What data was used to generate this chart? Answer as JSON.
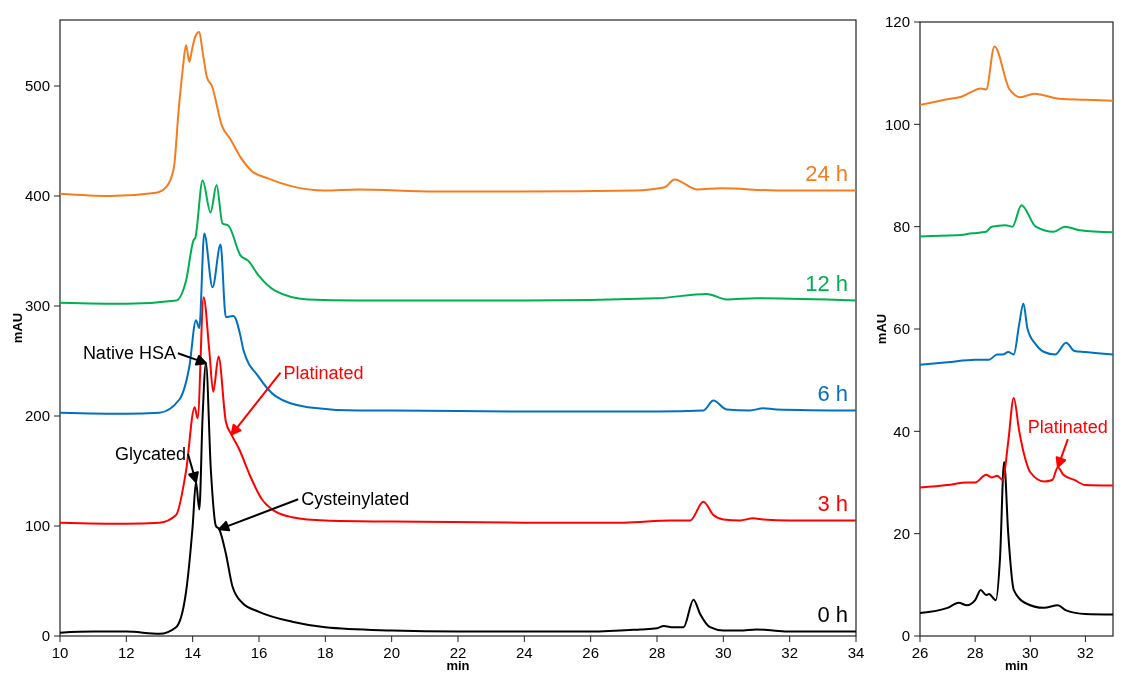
{
  "chart_data": [
    {
      "type": "line",
      "xlabel": "min",
      "ylabel": "mAU",
      "xlim": [
        10,
        34
      ],
      "ylim": [
        0,
        560
      ],
      "xticks": [
        10,
        12,
        14,
        16,
        18,
        20,
        22,
        24,
        26,
        28,
        30,
        32,
        34
      ],
      "yticks": [
        0,
        100,
        200,
        300,
        400,
        500
      ],
      "legend": false,
      "grid": false,
      "series": [
        {
          "name": "0 h",
          "color": "#000000",
          "x": [
            10,
            11,
            12,
            13,
            13.5,
            13.8,
            14.0,
            14.1,
            14.2,
            14.3,
            14.4,
            14.55,
            14.7,
            14.8,
            15.0,
            15.2,
            15.5,
            16,
            17,
            18,
            20,
            22,
            24,
            26,
            27.5,
            28,
            28.2,
            28.5,
            28.8,
            29.1,
            29.3,
            29.6,
            30,
            30.5,
            31,
            31.5,
            32,
            34
          ],
          "values": [
            3,
            4,
            4,
            2,
            8,
            40,
            100,
            140,
            115,
            200,
            248,
            150,
            100,
            97,
            75,
            45,
            30,
            22,
            13,
            8,
            5,
            4,
            4,
            4,
            6,
            7,
            9,
            8,
            8,
            33,
            20,
            8,
            5,
            5,
            6,
            5,
            4,
            4
          ]
        },
        {
          "name": "3 h",
          "color": "#ff0000",
          "x": [
            10,
            12,
            13,
            13.5,
            13.8,
            14.06,
            14.15,
            14.33,
            14.5,
            14.62,
            14.78,
            15.0,
            15.17,
            15.4,
            15.74,
            16.07,
            16.5,
            17,
            18,
            20,
            24,
            27,
            28.4,
            29,
            29.4,
            29.7,
            30,
            30.5,
            30.9,
            31.2,
            32,
            34
          ],
          "values": [
            103,
            102,
            103,
            110,
            150,
            208,
            198,
            308,
            260,
            222,
            254,
            195,
            183,
            170,
            145,
            125,
            113,
            108,
            105,
            104,
            103,
            103,
            105,
            105,
            122,
            110,
            106,
            105,
            107,
            106,
            105,
            105
          ]
        },
        {
          "name": "6 h",
          "color": "#0070c0",
          "x": [
            10,
            12,
            13,
            13.6,
            13.9,
            14.1,
            14.2,
            14.35,
            14.6,
            14.84,
            15.0,
            15.23,
            15.44,
            15.53,
            15.98,
            16.5,
            17.47,
            19,
            20,
            24,
            28,
            29.4,
            29.7,
            30.1,
            30.8,
            31.2,
            31.6,
            34
          ],
          "values": [
            203,
            202,
            203,
            215,
            245,
            287,
            280,
            366,
            317,
            356,
            290,
            291,
            273,
            260,
            236,
            218,
            208,
            205,
            205,
            204,
            204,
            205,
            214,
            206,
            205,
            207,
            206,
            205
          ]
        },
        {
          "name": "12 h",
          "color": "#00b050",
          "x": [
            10,
            12,
            13.5,
            13.8,
            14.03,
            14.08,
            14.3,
            14.54,
            14.72,
            14.9,
            15.08,
            15.44,
            15.68,
            15.98,
            16.48,
            17.47,
            18.97,
            24,
            28,
            29.5,
            30.1,
            31,
            34
          ],
          "values": [
            303,
            302,
            305,
            323,
            360,
            362,
            414,
            385,
            410,
            375,
            373,
            346,
            341,
            328,
            314,
            306,
            305,
            305,
            307,
            311,
            306,
            307,
            305
          ]
        },
        {
          "name": "24 h",
          "color": "#f57c1f",
          "x": [
            10,
            11.5,
            12.9,
            13.2,
            13.43,
            13.58,
            13.7,
            13.8,
            13.9,
            13.98,
            14.08,
            14.2,
            14.3,
            14.43,
            14.58,
            14.88,
            15.13,
            15.47,
            15.77,
            16.27,
            16.97,
            17.97,
            19,
            21.3,
            23.85,
            27.33,
            28.23,
            28.53,
            29.2,
            29.96,
            31.6,
            34
          ],
          "values": [
            402,
            400,
            403,
            408,
            425,
            479,
            515,
            537,
            522,
            533,
            545,
            549,
            531,
            508,
            500,
            464,
            452,
            434,
            423,
            416,
            409,
            405,
            406,
            404,
            404,
            405,
            408,
            415,
            406,
            407,
            405,
            405
          ]
        }
      ],
      "annotations": [
        {
          "text": "Native HSA",
          "x": 14.4,
          "y": 248
        },
        {
          "text": "Glycated",
          "x": 14.1,
          "y": 140
        },
        {
          "text": "Cysteinylated",
          "x": 14.8,
          "y": 97
        },
        {
          "text": "Platinated",
          "x": 15.17,
          "y": 183
        }
      ]
    },
    {
      "type": "line",
      "xlabel": "min",
      "ylabel": "mAU",
      "xlim": [
        26,
        33
      ],
      "ylim": [
        0,
        120
      ],
      "xticks": [
        26,
        28,
        30,
        32
      ],
      "yticks": [
        0,
        20,
        40,
        60,
        80,
        100,
        120
      ],
      "legend": false,
      "grid": false,
      "series": [
        {
          "color": "#000000",
          "x": [
            26,
            27,
            27.4,
            27.7,
            28,
            28.2,
            28.4,
            28.5,
            28.75,
            28.9,
            29.05,
            29.2,
            29.4,
            29.8,
            30.5,
            31,
            31.3,
            32,
            33
          ],
          "values": [
            4.5,
            5.5,
            6.5,
            6,
            7,
            9,
            8,
            8.2,
            7,
            15,
            34,
            20,
            9,
            6.5,
            5.5,
            6,
            5,
            4.3,
            4.2
          ]
        },
        {
          "color": "#ff0000",
          "x": [
            26,
            27,
            27.7,
            28,
            28.4,
            28.6,
            28.8,
            29.0,
            29.2,
            29.4,
            29.6,
            29.8,
            30.0,
            30.5,
            30.8,
            31,
            31.2,
            31.6,
            32,
            33
          ],
          "values": [
            29,
            29.5,
            30,
            30,
            31.5,
            31,
            31.3,
            30.5,
            38,
            46.5,
            40,
            35,
            32,
            30.2,
            30.5,
            33,
            31.5,
            30.5,
            29.5,
            29.4
          ]
        },
        {
          "color": "#0070c0",
          "x": [
            26,
            27,
            28,
            28.5,
            28.8,
            29.0,
            29.2,
            29.4,
            29.6,
            29.75,
            29.9,
            30.2,
            30.5,
            30.9,
            31.3,
            31.6,
            32,
            33
          ],
          "values": [
            53,
            53.5,
            54,
            54,
            55,
            55,
            55.5,
            55,
            61,
            65,
            60,
            57,
            55.5,
            55,
            57.3,
            55.7,
            55.5,
            55
          ]
        },
        {
          "color": "#00b050",
          "x": [
            26,
            27.3,
            27.9,
            28.4,
            28.6,
            29.1,
            29.35,
            29.68,
            30.2,
            30.85,
            31.25,
            31.8,
            33
          ],
          "values": [
            78.1,
            78.3,
            78.7,
            79,
            80,
            80.3,
            80,
            84.2,
            80,
            79,
            80,
            79.3,
            78.9
          ]
        },
        {
          "color": "#f57c1f",
          "x": [
            26,
            27.1,
            27.5,
            27.85,
            28.2,
            28.4,
            28.7,
            29.25,
            29.65,
            30.15,
            31.05,
            32,
            33
          ],
          "values": [
            103.8,
            105,
            105.4,
            106.3,
            107,
            106.8,
            115.2,
            106.8,
            105.3,
            106,
            105,
            104.8,
            104.6
          ]
        }
      ],
      "annotations": [
        {
          "text": "Platinated",
          "x": 31.0,
          "y": 33
        }
      ]
    }
  ]
}
